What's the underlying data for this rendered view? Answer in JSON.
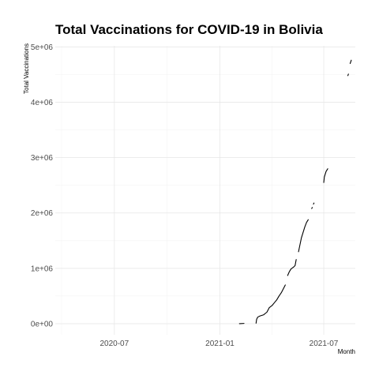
{
  "chart_data": {
    "type": "line",
    "title": "Total Vaccinations for COVID-19 in Bolivia",
    "xlabel": "Month",
    "ylabel": "Total Vaccinations",
    "x_tick_labels": [
      "2020-07",
      "2021-01",
      "2021-07"
    ],
    "x_ticks": [
      "2020-07-01",
      "2021-01-01",
      "2021-07-01"
    ],
    "y_tick_labels": [
      "0e+00",
      "1e+06",
      "2e+06",
      "3e+06",
      "4e+06",
      "5e+06"
    ],
    "y_ticks": [
      0,
      1000000,
      2000000,
      3000000,
      4000000,
      5000000
    ],
    "xlim": [
      "2020-03-20",
      "2021-08-25"
    ],
    "ylim": [
      -200000,
      5020000
    ],
    "grid": true,
    "series": [
      {
        "color": "#000000",
        "segments": [
          [
            [
              "2021-02-04",
              1000
            ],
            [
              "2021-02-12",
              5000
            ]
          ],
          [
            [
              "2021-03-05",
              10000
            ],
            [
              "2021-03-06",
              80000
            ],
            [
              "2021-03-08",
              120000
            ],
            [
              "2021-03-12",
              140000
            ],
            [
              "2021-03-18",
              160000
            ],
            [
              "2021-03-24",
              210000
            ],
            [
              "2021-03-28",
              290000
            ],
            [
              "2021-04-02",
              330000
            ],
            [
              "2021-04-06",
              380000
            ],
            [
              "2021-04-10",
              430000
            ],
            [
              "2021-04-14",
              500000
            ],
            [
              "2021-04-18",
              560000
            ],
            [
              "2021-04-22",
              640000
            ],
            [
              "2021-04-25",
              700000
            ]
          ],
          [
            [
              "2021-04-29",
              870000
            ],
            [
              "2021-05-02",
              940000
            ],
            [
              "2021-05-05",
              990000
            ],
            [
              "2021-05-09",
              1020000
            ],
            [
              "2021-05-12",
              1050000
            ],
            [
              "2021-05-14",
              1160000
            ]
          ],
          [
            [
              "2021-05-18",
              1300000
            ],
            [
              "2021-05-20",
              1400000
            ],
            [
              "2021-05-23",
              1550000
            ],
            [
              "2021-05-26",
              1650000
            ],
            [
              "2021-05-29",
              1750000
            ],
            [
              "2021-06-01",
              1830000
            ],
            [
              "2021-06-04",
              1880000
            ]
          ],
          [
            [
              "2021-06-10",
              2080000
            ],
            [
              "2021-06-11",
              2100000
            ]
          ],
          [
            [
              "2021-06-13",
              2160000
            ],
            [
              "2021-06-14",
              2180000
            ]
          ],
          [
            [
              "2021-07-01",
              2550000
            ],
            [
              "2021-07-02",
              2650000
            ],
            [
              "2021-07-05",
              2750000
            ],
            [
              "2021-07-08",
              2800000
            ]
          ],
          [
            [
              "2021-08-12",
              4480000
            ],
            [
              "2021-08-13",
              4510000
            ]
          ],
          [
            [
              "2021-08-16",
              4700000
            ],
            [
              "2021-08-18",
              4760000
            ]
          ]
        ]
      }
    ]
  }
}
